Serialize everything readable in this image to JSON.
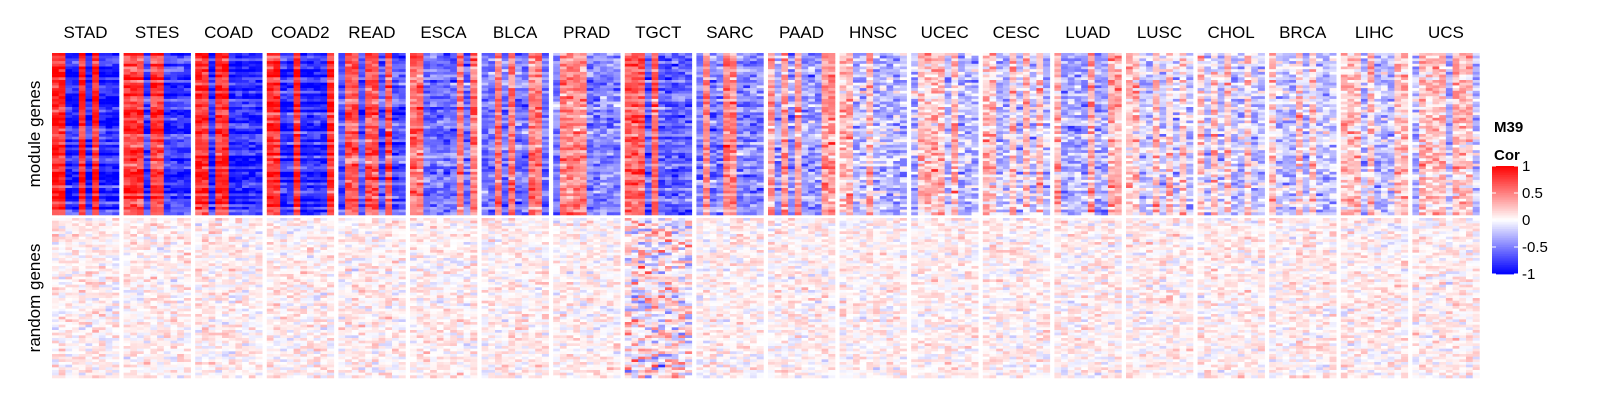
{
  "chart_data": {
    "type": "heatmap",
    "columns": [
      "STAD",
      "STES",
      "COAD",
      "COAD2",
      "READ",
      "ESCA",
      "BLCA",
      "PRAD",
      "TGCT",
      "SARC",
      "PAAD",
      "HNSC",
      "UCEC",
      "CESC",
      "LUAD",
      "LUSC",
      "CHOL",
      "BRCA",
      "LIHC",
      "UCS"
    ],
    "row_groups": [
      {
        "label": "module genes",
        "rows": 60
      },
      {
        "label": "random genes",
        "rows": 60
      }
    ],
    "cols_per_panel": 10,
    "module_strength": [
      0.95,
      0.9,
      0.95,
      0.95,
      0.75,
      0.65,
      0.6,
      0.55,
      0.7,
      0.6,
      0.45,
      0.3,
      0.3,
      0.3,
      0.4,
      0.25,
      0.25,
      0.25,
      0.3,
      0.3
    ],
    "legend": {
      "title_line1": "M39",
      "title_line2": "Cor",
      "breaks": [
        {
          "value": 1,
          "label": "1"
        },
        {
          "value": 0.5,
          "label": "0.5"
        },
        {
          "value": 0,
          "label": "0"
        },
        {
          "value": -0.5,
          "label": "-0.5"
        },
        {
          "value": -1,
          "label": "-1"
        }
      ]
    },
    "colorscale": {
      "low": "#0000ff",
      "mid": "#ffffff",
      "high": "#ff0000",
      "range": [
        -1,
        1
      ]
    }
  }
}
